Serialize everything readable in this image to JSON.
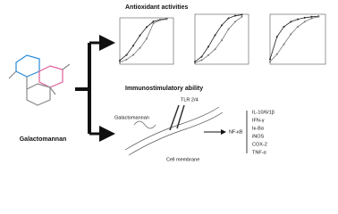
{
  "molecule_label": "Galactomannan",
  "antioxidant": {
    "title": "Antioxidant activities",
    "charts": [
      {
        "type": "line",
        "xlim": [
          0,
          8
        ],
        "ylim": [
          0,
          100
        ],
        "x": [
          0,
          1,
          2,
          3,
          4,
          5,
          6,
          7
        ],
        "series": [
          {
            "color": "#222",
            "values": [
              8,
              20,
              40,
              62,
              80,
              92,
              96,
              98
            ]
          },
          {
            "color": "#777",
            "values": [
              4,
              10,
              20,
              35,
              55,
              88,
              95,
              97
            ]
          }
        ]
      },
      {
        "type": "line",
        "xlim": [
          0,
          8
        ],
        "ylim": [
          0,
          100
        ],
        "x": [
          0,
          1,
          2,
          3,
          4,
          5,
          6,
          7
        ],
        "series": [
          {
            "color": "#222",
            "values": [
              5,
              15,
              35,
              58,
              78,
              92,
              97,
              99
            ]
          },
          {
            "color": "#777",
            "values": [
              3,
              8,
              18,
              30,
              48,
              70,
              85,
              95
            ]
          }
        ]
      },
      {
        "type": "line",
        "xlim": [
          0,
          8
        ],
        "ylim": [
          0,
          100
        ],
        "x": [
          0,
          1,
          2,
          3,
          4,
          5,
          6,
          7
        ],
        "series": [
          {
            "color": "#222",
            "values": [
              10,
              55,
              75,
              85,
              90,
              93,
              95,
              96
            ]
          },
          {
            "color": "#777",
            "values": [
              5,
              20,
              40,
              60,
              75,
              85,
              92,
              95
            ]
          }
        ]
      }
    ]
  },
  "immuno": {
    "title": "Immunostimulatory ability",
    "receptor": "TLR 2/4",
    "ligand": "Galactomannan",
    "factor": "NF-κB",
    "membrane": "Cell membrane",
    "outputs": [
      "IL-10/6/1β",
      "IFN-γ",
      "Iκ-Bα",
      "iNOS",
      "COX-2",
      "TNF-α"
    ]
  }
}
